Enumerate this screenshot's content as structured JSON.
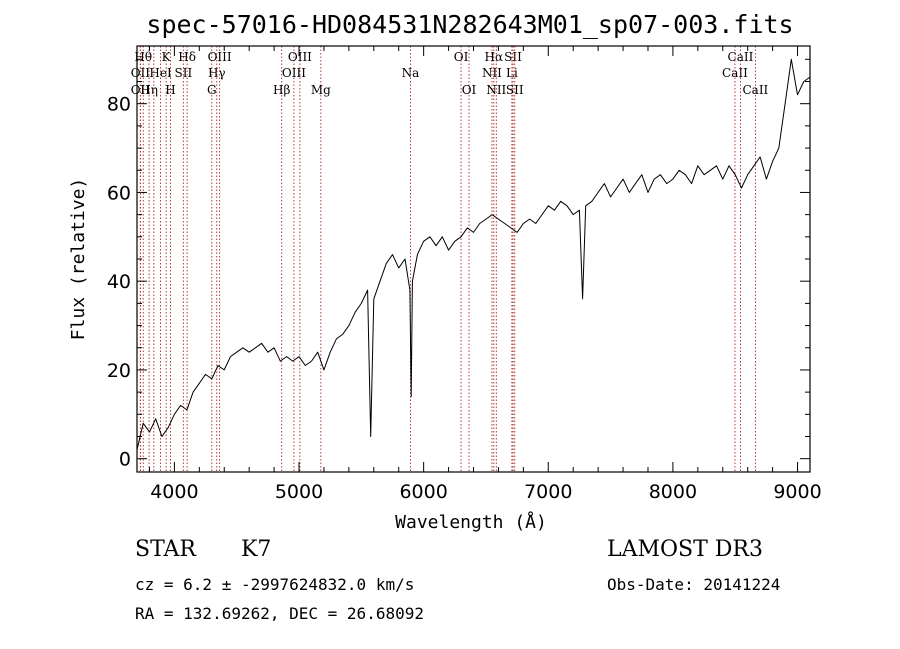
{
  "chart_data": {
    "type": "line",
    "title": "spec-57016-HD084531N282643M01_sp07-003.fits",
    "xlabel": "Wavelength (Å)",
    "ylabel": "Flux (relative)",
    "xlim": [
      3700,
      9100
    ],
    "ylim": [
      -3,
      93
    ],
    "xticks": [
      4000,
      5000,
      6000,
      7000,
      8000,
      9000
    ],
    "yticks": [
      0,
      20,
      40,
      60,
      80
    ],
    "grid": false,
    "series": [
      {
        "color": "#000000",
        "x": [
          3700,
          3750,
          3800,
          3850,
          3900,
          3950,
          4000,
          4050,
          4100,
          4150,
          4200,
          4250,
          4300,
          4350,
          4400,
          4450,
          4500,
          4550,
          4600,
          4650,
          4700,
          4750,
          4800,
          4850,
          4900,
          4950,
          5000,
          5050,
          5100,
          5150,
          5200,
          5250,
          5300,
          5350,
          5400,
          5450,
          5500,
          5550,
          5575,
          5600,
          5650,
          5700,
          5750,
          5800,
          5850,
          5890,
          5900,
          5910,
          5950,
          6000,
          6050,
          6100,
          6150,
          6200,
          6250,
          6300,
          6350,
          6400,
          6450,
          6500,
          6550,
          6600,
          6650,
          6700,
          6750,
          6800,
          6850,
          6900,
          6950,
          7000,
          7050,
          7100,
          7150,
          7200,
          7250,
          7275,
          7300,
          7350,
          7400,
          7450,
          7500,
          7550,
          7600,
          7650,
          7700,
          7750,
          7800,
          7850,
          7900,
          7950,
          8000,
          8050,
          8100,
          8150,
          8200,
          8250,
          8300,
          8350,
          8400,
          8450,
          8500,
          8550,
          8600,
          8650,
          8700,
          8750,
          8800,
          8850,
          8900,
          8950,
          9000,
          9050,
          9100
        ],
        "y": [
          2,
          8,
          6,
          9,
          5,
          7,
          10,
          12,
          11,
          15,
          17,
          19,
          18,
          21,
          20,
          23,
          24,
          25,
          24,
          25,
          26,
          24,
          25,
          22,
          23,
          22,
          23,
          21,
          22,
          24,
          20,
          24,
          27,
          28,
          30,
          33,
          35,
          38,
          5,
          36,
          40,
          44,
          46,
          43,
          45,
          38,
          14,
          40,
          46,
          49,
          50,
          48,
          50,
          47,
          49,
          50,
          52,
          51,
          53,
          54,
          55,
          54,
          53,
          52,
          51,
          53,
          54,
          53,
          55,
          57,
          56,
          58,
          57,
          55,
          56,
          36,
          57,
          58,
          60,
          62,
          59,
          61,
          63,
          60,
          62,
          64,
          60,
          63,
          64,
          62,
          63,
          65,
          64,
          62,
          66,
          64,
          65,
          66,
          63,
          66,
          64,
          61,
          64,
          66,
          68,
          63,
          67,
          70,
          80,
          90,
          82,
          85,
          86
        ]
      }
    ],
    "lines": [
      {
        "w": 3750,
        "label": "Hθ",
        "row": 1
      },
      {
        "w": 3727,
        "label": "OII",
        "row": 2
      },
      {
        "w": 3727,
        "label": "OII",
        "row": 3
      },
      {
        "w": 3797,
        "label": "Hη",
        "row": 3
      },
      {
        "w": 3835,
        "label": "",
        "row": 0
      },
      {
        "w": 3889,
        "label": "HeI",
        "row": 2
      },
      {
        "w": 3934,
        "label": "K",
        "row": 1
      },
      {
        "w": 3969,
        "label": "H",
        "row": 3
      },
      {
        "w": 4072,
        "label": "SII",
        "row": 2
      },
      {
        "w": 4102,
        "label": "Hδ",
        "row": 1
      },
      {
        "w": 4300,
        "label": "G",
        "row": 3
      },
      {
        "w": 4340,
        "label": "Hγ",
        "row": 2
      },
      {
        "w": 4363,
        "label": "OIII",
        "row": 1
      },
      {
        "w": 4861,
        "label": "Hβ",
        "row": 3
      },
      {
        "w": 4959,
        "label": "OIII",
        "row": 2
      },
      {
        "w": 5007,
        "label": "OIII",
        "row": 1
      },
      {
        "w": 5175,
        "label": "Mg",
        "row": 3
      },
      {
        "w": 5894,
        "label": "Na",
        "row": 2
      },
      {
        "w": 6300,
        "label": "OI",
        "row": 1
      },
      {
        "w": 6364,
        "label": "OI",
        "row": 3
      },
      {
        "w": 6548,
        "label": "NII",
        "row": 2
      },
      {
        "w": 6563,
        "label": "Hα",
        "row": 1
      },
      {
        "w": 6583,
        "label": "NII",
        "row": 3
      },
      {
        "w": 6708,
        "label": "Li",
        "row": 2
      },
      {
        "w": 6717,
        "label": "SII",
        "row": 1
      },
      {
        "w": 6731,
        "label": "SII",
        "row": 3
      },
      {
        "w": 8498,
        "label": "CaII",
        "row": 2
      },
      {
        "w": 8542,
        "label": "CaII",
        "row": 1
      },
      {
        "w": 8662,
        "label": "CaII",
        "row": 3
      }
    ]
  },
  "info": {
    "type_label": "STAR",
    "subclass": "K7",
    "survey": "LAMOST DR3",
    "cz": "cz = 6.2 ± -2997624832.0 km/s",
    "obs_date": "Obs-Date: 20141224",
    "radec": "RA = 132.69262, DEC =  26.68092"
  }
}
